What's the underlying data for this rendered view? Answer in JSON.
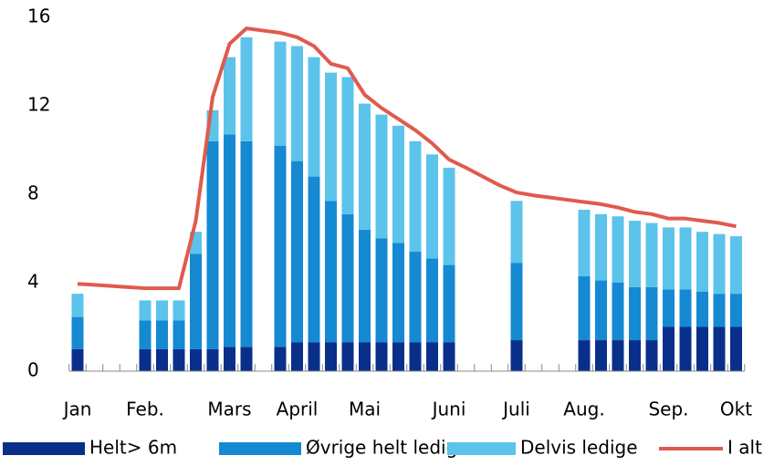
{
  "chart_data": {
    "type": "bar",
    "stacked": true,
    "categories": [
      "Jan",
      null,
      null,
      null,
      "Feb.",
      null,
      null,
      null,
      null,
      "Mars",
      null,
      null,
      null,
      "April",
      null,
      null,
      null,
      "Mai",
      null,
      null,
      null,
      null,
      "Juni",
      null,
      null,
      null,
      "Juli",
      null,
      null,
      null,
      "Aug.",
      null,
      null,
      null,
      null,
      "Sep.",
      null,
      null,
      null,
      "Okt"
    ],
    "ylim": [
      0,
      16
    ],
    "yticks": [
      0,
      4,
      8,
      12,
      16
    ],
    "legend": "bottom",
    "series": [
      {
        "name": "Helt> 6m",
        "color": "#0a2f8a",
        "values": [
          1.0,
          null,
          null,
          null,
          1.0,
          1.0,
          1.0,
          1.0,
          1.0,
          1.1,
          1.1,
          null,
          1.1,
          1.3,
          1.3,
          1.3,
          1.3,
          1.3,
          1.3,
          1.3,
          1.3,
          1.3,
          1.3,
          null,
          null,
          null,
          1.4,
          null,
          null,
          null,
          1.4,
          1.4,
          1.4,
          1.4,
          1.4,
          2.0,
          2.0,
          2.0,
          2.0,
          2.0
        ]
      },
      {
        "name": "Øvrige helt ledige",
        "color": "#1589d2",
        "values": [
          1.45,
          null,
          null,
          null,
          1.3,
          1.3,
          1.3,
          4.3,
          9.4,
          9.6,
          9.3,
          null,
          9.1,
          8.2,
          7.5,
          6.4,
          5.8,
          5.1,
          4.7,
          4.5,
          4.1,
          3.8,
          3.5,
          null,
          null,
          null,
          3.5,
          null,
          null,
          null,
          2.9,
          2.7,
          2.6,
          2.4,
          2.4,
          1.7,
          1.7,
          1.6,
          1.5,
          1.5
        ]
      },
      {
        "name": "Delvis ledige",
        "color": "#5cc3eb",
        "values": [
          1.05,
          null,
          null,
          null,
          0.9,
          0.9,
          0.9,
          1.0,
          1.4,
          3.5,
          4.7,
          null,
          4.7,
          5.2,
          5.4,
          5.8,
          6.2,
          5.7,
          5.6,
          5.3,
          5.0,
          4.7,
          4.4,
          null,
          null,
          null,
          2.8,
          null,
          null,
          null,
          3.0,
          3.0,
          3.0,
          3.0,
          2.9,
          2.8,
          2.8,
          2.7,
          2.7,
          2.6
        ]
      },
      {
        "name": "I alt",
        "color": "#e05a4e",
        "type": "line",
        "values": [
          3.95,
          3.9,
          3.85,
          3.8,
          3.75,
          3.75,
          3.75,
          6.8,
          12.4,
          14.8,
          15.5,
          15.4,
          15.3,
          15.1,
          14.7,
          13.9,
          13.7,
          12.5,
          11.9,
          11.4,
          10.9,
          10.3,
          9.57,
          9.2,
          8.8,
          8.4,
          8.08,
          7.95,
          7.85,
          7.75,
          7.65,
          7.55,
          7.4,
          7.2,
          7.1,
          6.9,
          6.9,
          6.8,
          6.7,
          6.55
        ]
      }
    ]
  }
}
